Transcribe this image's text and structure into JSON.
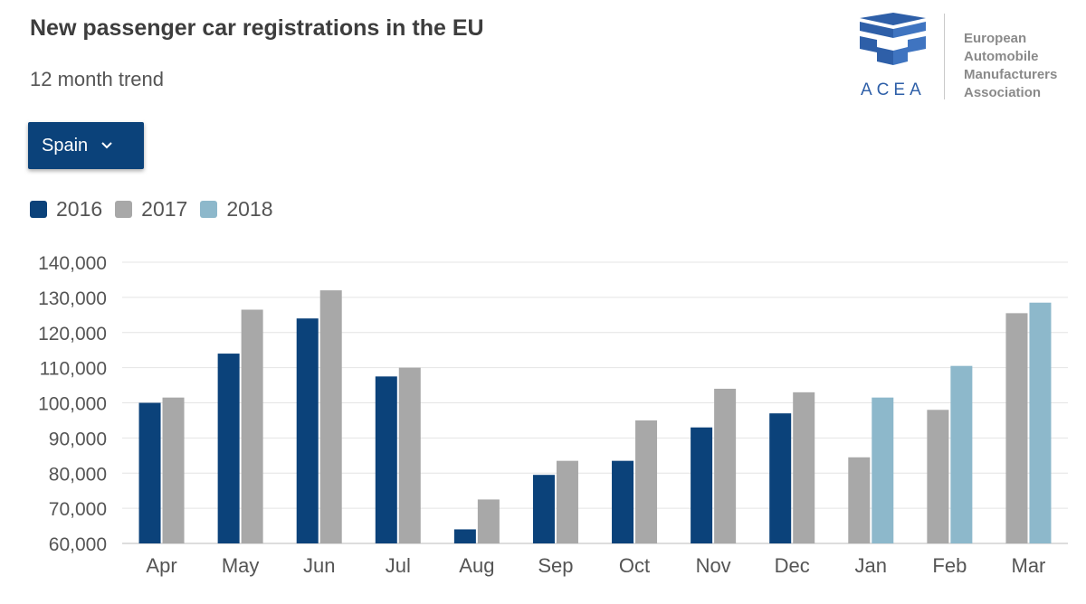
{
  "header": {
    "title": "New passenger car registrations in the EU",
    "subtitle": "12 month trend"
  },
  "selector": {
    "selected": "Spain"
  },
  "logo": {
    "abbr": "ACEA",
    "lines": [
      "European",
      "Automobile",
      "Manufacturers",
      "Association"
    ],
    "color": "#2e5fa8"
  },
  "legend": [
    {
      "label": "2016",
      "color": "#0b427a"
    },
    {
      "label": "2017",
      "color": "#a8a8a8"
    },
    {
      "label": "2018",
      "color": "#8db8cb"
    }
  ],
  "chart_data": {
    "type": "bar",
    "title": "New passenger car registrations in the EU",
    "subtitle": "12 month trend",
    "categories": [
      "Apr",
      "May",
      "Jun",
      "Jul",
      "Aug",
      "Sep",
      "Oct",
      "Nov",
      "Dec",
      "Jan",
      "Feb",
      "Mar"
    ],
    "ylim": [
      60000,
      140000
    ],
    "yticks": [
      140000,
      130000,
      120000,
      110000,
      100000,
      90000,
      80000,
      70000,
      60000
    ],
    "ytick_labels": [
      "140,000",
      "130,000",
      "120,000",
      "110,000",
      "100,000",
      "90,000",
      "80,000",
      "70,000",
      "60,000"
    ],
    "grid": true,
    "legend_position": "top-left",
    "series": [
      {
        "name": "2016",
        "color": "#0b427a",
        "values": [
          100000,
          114000,
          124000,
          107500,
          64000,
          79500,
          83500,
          93000,
          97000,
          null,
          null,
          null
        ]
      },
      {
        "name": "2017",
        "color": "#a8a8a8",
        "values": [
          101500,
          126500,
          132000,
          110000,
          72500,
          83500,
          95000,
          104000,
          103000,
          84500,
          98000,
          125500
        ]
      },
      {
        "name": "2018",
        "color": "#8db8cb",
        "values": [
          null,
          null,
          null,
          null,
          null,
          null,
          null,
          null,
          null,
          101500,
          110500,
          128500
        ]
      }
    ]
  }
}
